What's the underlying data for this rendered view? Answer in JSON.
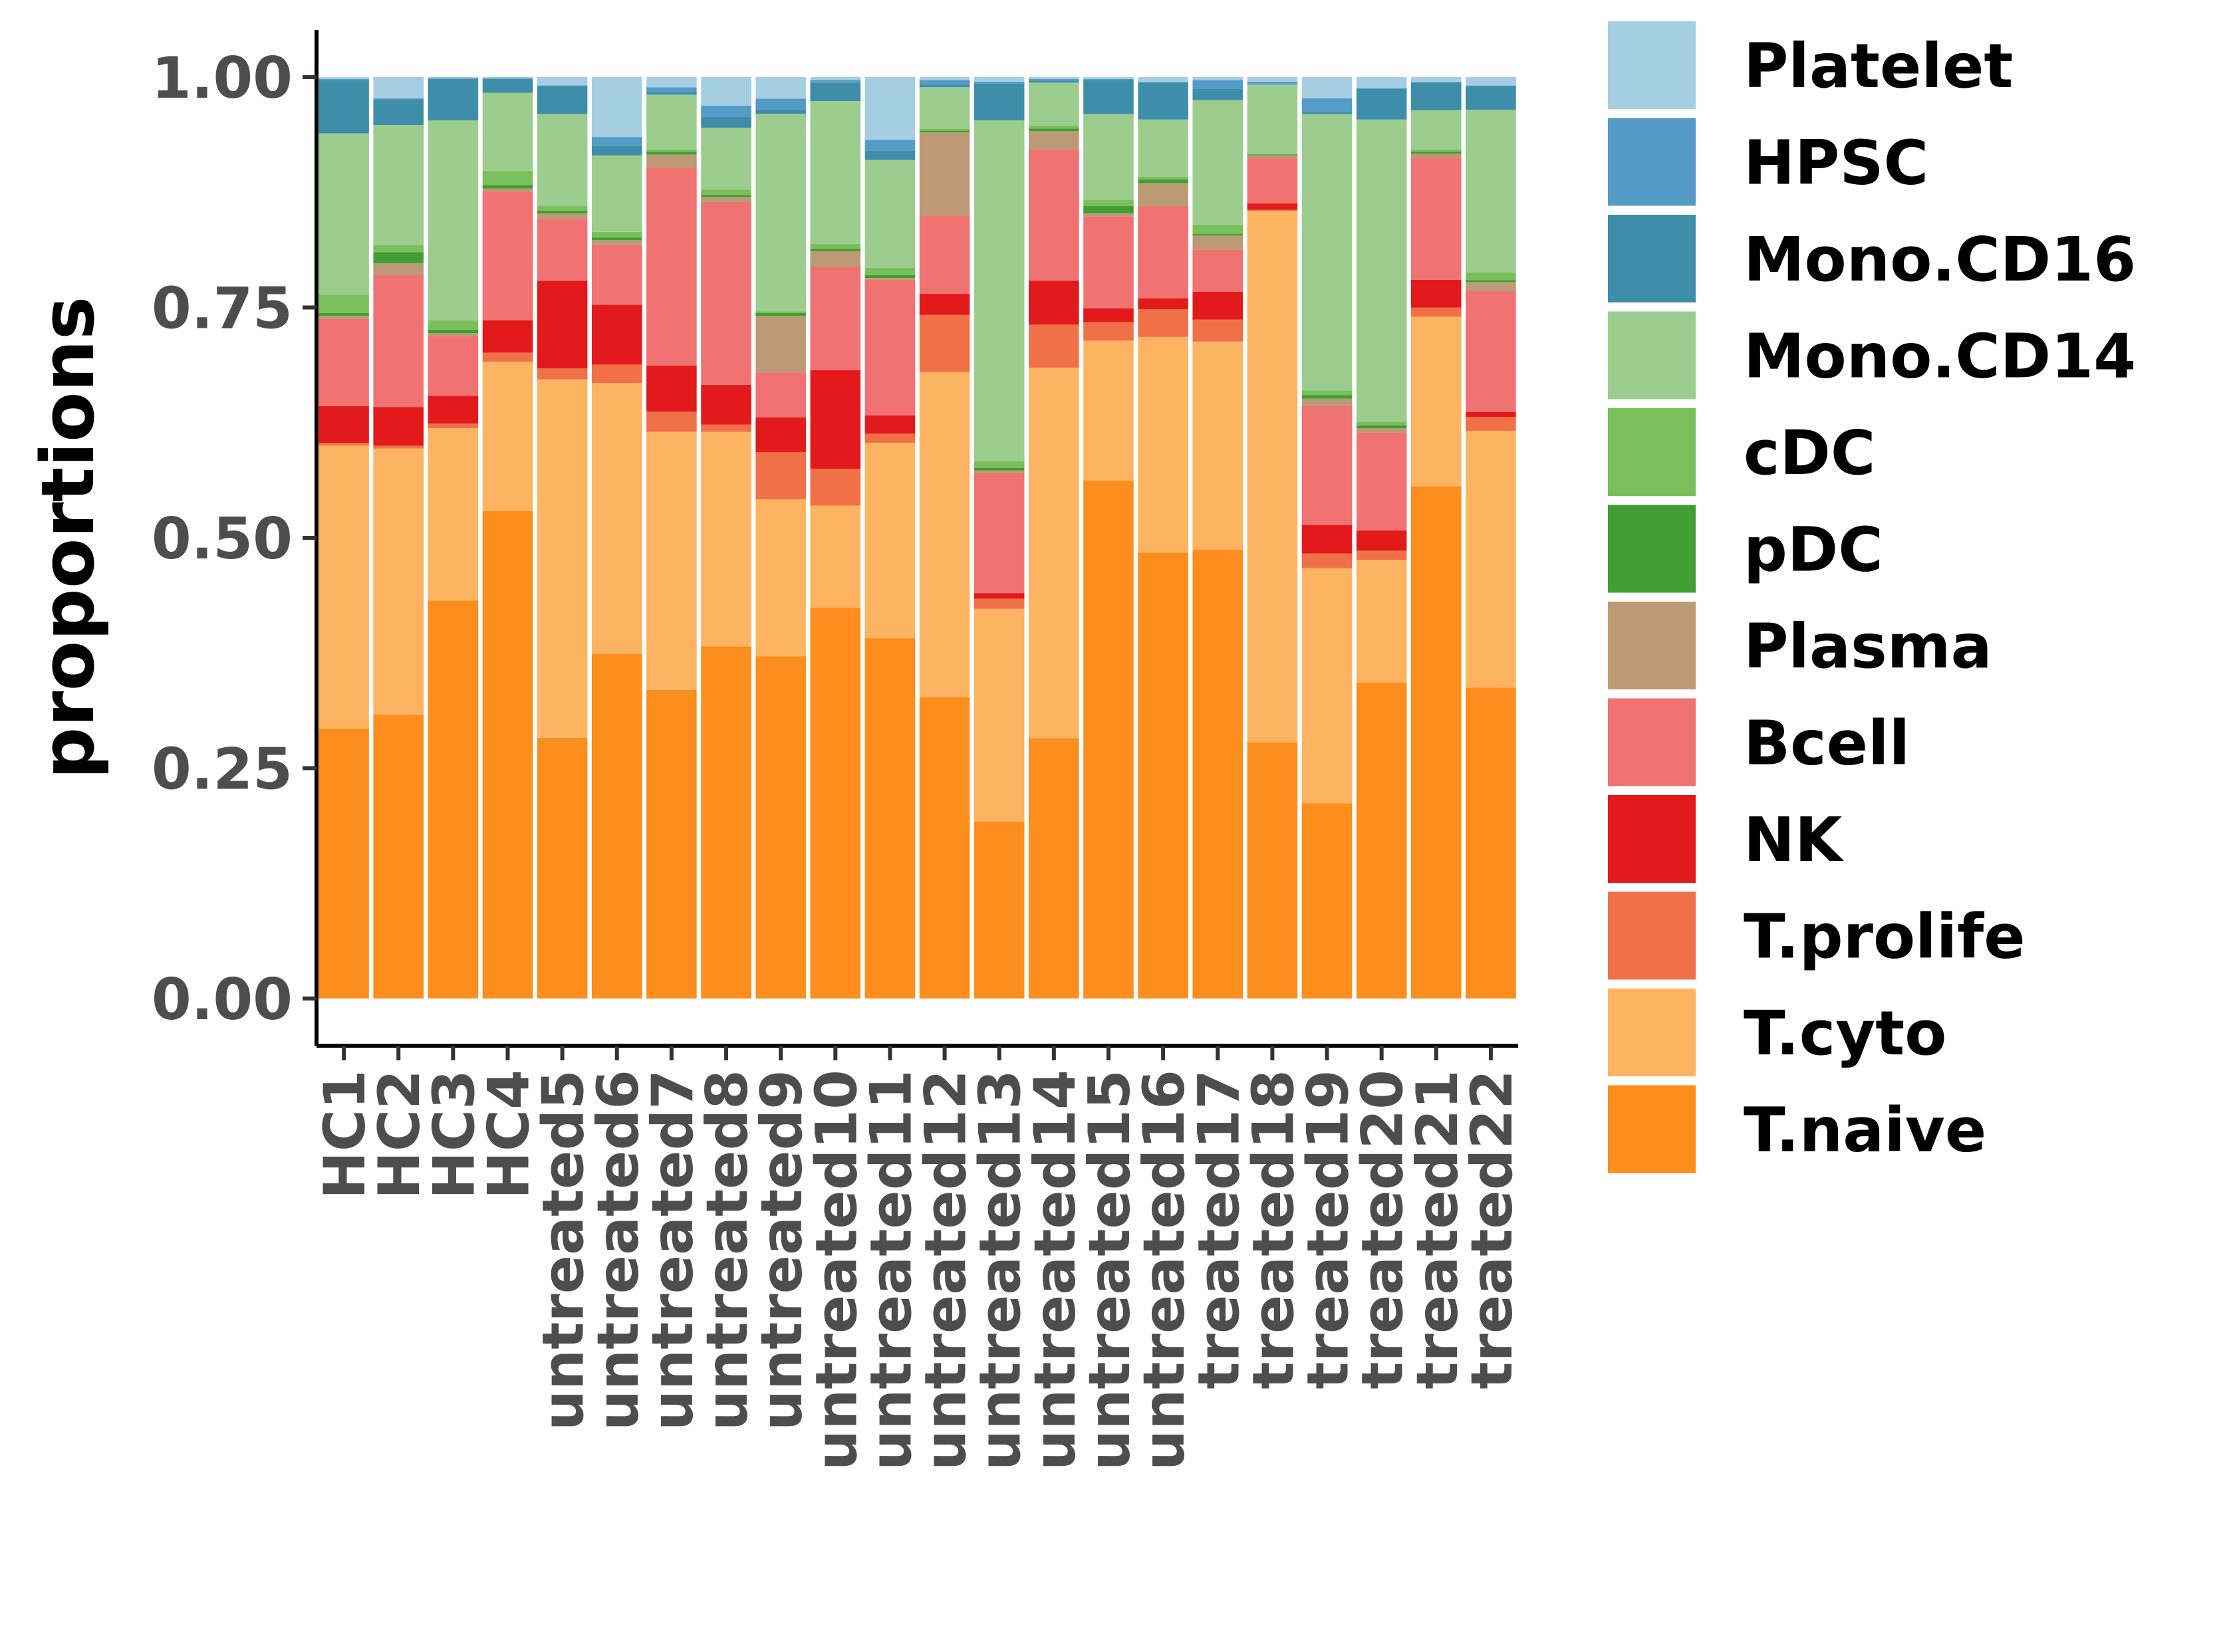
{
  "chart_data": {
    "type": "bar",
    "stacked": true,
    "ylabel": "proportions",
    "xlabel": "",
    "ylim": [
      0,
      1
    ],
    "yticks": [
      "0.00",
      "0.25",
      "0.50",
      "0.75",
      "1.00"
    ],
    "grid": false,
    "legend_position": "right",
    "categories": [
      "HC1",
      "HC2",
      "HC3",
      "HC4",
      "untreated5",
      "untreated6",
      "untreated7",
      "untreated8",
      "untreated9",
      "untreated10",
      "untreated11",
      "untreated12",
      "untreated13",
      "untreated14",
      "untreated15",
      "untreated16",
      "treated17",
      "treated18",
      "treated19",
      "treated20",
      "treated21",
      "treated22"
    ],
    "legend_order": [
      "Platelet",
      "HPSC",
      "Mono.CD16",
      "Mono.CD14",
      "cDC",
      "pDC",
      "Plasma",
      "Bcell",
      "NK",
      "T.prolife",
      "T.cyto",
      "T.naive"
    ],
    "series": [
      {
        "name": "T.naive",
        "color": "#FD8D1C",
        "values": [
          0.293,
          0.308,
          0.432,
          0.529,
          0.283,
          0.374,
          0.335,
          0.382,
          0.364,
          0.424,
          0.391,
          0.327,
          0.192,
          0.284,
          0.562,
          0.484,
          0.487,
          0.278,
          0.212,
          0.343,
          0.556,
          0.334
        ]
      },
      {
        "name": "T.cyto",
        "color": "#FDB462",
        "values": [
          0.307,
          0.289,
          0.187,
          0.162,
          0.389,
          0.294,
          0.28,
          0.233,
          0.167,
          0.111,
          0.212,
          0.353,
          0.231,
          0.404,
          0.152,
          0.234,
          0.226,
          0.577,
          0.255,
          0.133,
          0.184,
          0.276
        ]
      },
      {
        "name": "T.prolife",
        "color": "#F07148",
        "values": [
          0.003,
          0.003,
          0.005,
          0.01,
          0.012,
          0.02,
          0.022,
          0.008,
          0.05,
          0.04,
          0.01,
          0.062,
          0.011,
          0.047,
          0.02,
          0.03,
          0.024,
          0.001,
          0.016,
          0.01,
          0.01,
          0.015
        ]
      },
      {
        "name": "NK",
        "color": "#E31A1C",
        "values": [
          0.04,
          0.042,
          0.03,
          0.035,
          0.095,
          0.065,
          0.05,
          0.043,
          0.037,
          0.107,
          0.02,
          0.023,
          0.006,
          0.048,
          0.015,
          0.012,
          0.03,
          0.007,
          0.031,
          0.022,
          0.03,
          0.005
        ]
      },
      {
        "name": "Bcell",
        "color": "#F07272",
        "values": [
          0.095,
          0.143,
          0.065,
          0.14,
          0.067,
          0.065,
          0.215,
          0.198,
          0.048,
          0.112,
          0.147,
          0.085,
          0.13,
          0.143,
          0.1,
          0.1,
          0.046,
          0.05,
          0.129,
          0.106,
          0.133,
          0.13
        ]
      },
      {
        "name": "Plasma",
        "color": "#BC9A76",
        "values": [
          0.003,
          0.013,
          0.003,
          0.003,
          0.006,
          0.005,
          0.014,
          0.006,
          0.06,
          0.017,
          0.002,
          0.09,
          0.003,
          0.02,
          0.003,
          0.025,
          0.015,
          0.002,
          0.008,
          0.005,
          0.004,
          0.01
        ]
      },
      {
        "name": "pDC",
        "color": "#409E32",
        "values": [
          0.003,
          0.012,
          0.004,
          0.004,
          0.003,
          0.003,
          0.003,
          0.002,
          0.003,
          0.003,
          0.003,
          0.002,
          0.003,
          0.003,
          0.008,
          0.004,
          0.002,
          0.001,
          0.004,
          0.003,
          0.002,
          0.002
        ]
      },
      {
        "name": "cDC",
        "color": "#7ABF5B",
        "values": [
          0.02,
          0.008,
          0.01,
          0.015,
          0.005,
          0.006,
          0.002,
          0.006,
          0.002,
          0.005,
          0.008,
          0.002,
          0.007,
          0.003,
          0.007,
          0.003,
          0.01,
          0.001,
          0.005,
          0.004,
          0.002,
          0.008
        ]
      },
      {
        "name": "Mono.CD14",
        "color": "#9CCD8F",
        "values": [
          0.175,
          0.13,
          0.217,
          0.085,
          0.1,
          0.083,
          0.06,
          0.067,
          0.21,
          0.155,
          0.117,
          0.045,
          0.37,
          0.047,
          0.093,
          0.062,
          0.135,
          0.075,
          0.3,
          0.328,
          0.043,
          0.175
        ]
      },
      {
        "name": "Mono.CD16",
        "color": "#3E8EA9",
        "values": [
          0.058,
          0.028,
          0.045,
          0.015,
          0.03,
          0.01,
          0.003,
          0.012,
          0.004,
          0.02,
          0.01,
          0.003,
          0.04,
          0.002,
          0.037,
          0.04,
          0.012,
          0.001,
          0.002,
          0.033,
          0.03,
          0.025
        ]
      },
      {
        "name": "HPSC",
        "color": "#559BC8",
        "values": [
          0.001,
          0.001,
          0.001,
          0.001,
          0.001,
          0.01,
          0.005,
          0.012,
          0.012,
          0.003,
          0.012,
          0.005,
          0.002,
          0.002,
          0.001,
          0.001,
          0.01,
          0.002,
          0.015,
          0.001,
          0.001,
          0.001
        ]
      },
      {
        "name": "Platelet",
        "color": "#A6CEE3",
        "values": [
          0.002,
          0.023,
          0.001,
          0.001,
          0.009,
          0.065,
          0.011,
          0.031,
          0.023,
          0.003,
          0.068,
          0.003,
          0.005,
          0.002,
          0.002,
          0.005,
          0.003,
          0.005,
          0.023,
          0.012,
          0.005,
          0.009
        ]
      }
    ]
  }
}
